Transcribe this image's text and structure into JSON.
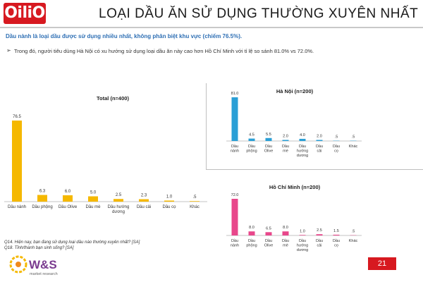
{
  "brand": {
    "logo_text": "OiliO",
    "accent": "#d71920"
  },
  "header": {
    "title": "LOẠI DẦU ĂN SỬ DỤNG THƯỜNG XUYÊN NHẤT",
    "subtitle": "Dầu nành là loại dầu được sử dụng nhiều nhất, không phân biệt khu vực (chiếm 76.5%).",
    "bullet": "Trong đó, người tiêu dùng Hà Nội có xu hướng sử dụng loại dầu ăn này cao hơn Hồ Chí Minh với tỉ lệ so sánh 81.0% vs 72.0%."
  },
  "footnotes": [
    "Q14. Hiện nay, bạn đang sử dụng loại dầu nào thường xuyên nhất? [SA]",
    "Q18. Tỉnh/thành bạn sinh sống? [SA]"
  ],
  "footer": {
    "company": "W&S",
    "company_sub": "market research",
    "page_number": "21"
  },
  "chart_data": [
    {
      "type": "bar",
      "title": "Total (n=400)",
      "color": "#f5b800",
      "categories": [
        "Dầu nành",
        "Dầu phộng",
        "Dầu Olive",
        "Dầu mè",
        "Dầu hướng dương",
        "Dầu cải",
        "Dầu cọ",
        "Khác"
      ],
      "values": [
        76.5,
        6.3,
        6.0,
        5.0,
        2.5,
        2.3,
        1.0,
        0.5
      ],
      "labels": [
        "76.5",
        "6.3",
        "6.0",
        "5.0",
        "2.5",
        "2.3",
        "1.0",
        ".5"
      ]
    },
    {
      "type": "bar",
      "title": "Hà Nội (n=200)",
      "color": "#2a9fd6",
      "categories": [
        "Dầu nành",
        "Dầu phộng",
        "Dầu Olive",
        "Dầu mè",
        "Dầu hướng dương",
        "Dầu cải",
        "Dầu cọ",
        "Khác"
      ],
      "values": [
        81.0,
        4.5,
        5.5,
        2.0,
        4.0,
        2.0,
        0.5,
        0.5
      ],
      "labels": [
        "81.0",
        "4.5",
        "5.5",
        "2.0",
        "4.0",
        "2.0",
        ".5",
        ".5"
      ]
    },
    {
      "type": "bar",
      "title": "Hồ Chí Minh (n=200)",
      "color": "#e8478b",
      "categories": [
        "Dầu nành",
        "Dầu phộng",
        "Dầu Olive",
        "Dầu mè",
        "Dầu hướng dương",
        "Dầu cải",
        "Dầu cọ",
        "Khác"
      ],
      "values": [
        72.0,
        8.0,
        6.5,
        8.0,
        1.0,
        2.5,
        1.5,
        0.5
      ],
      "labels": [
        "72.0",
        "8.0",
        "6.5",
        "8.0",
        "1.0",
        "2.5",
        "1.5",
        ".5"
      ]
    }
  ]
}
